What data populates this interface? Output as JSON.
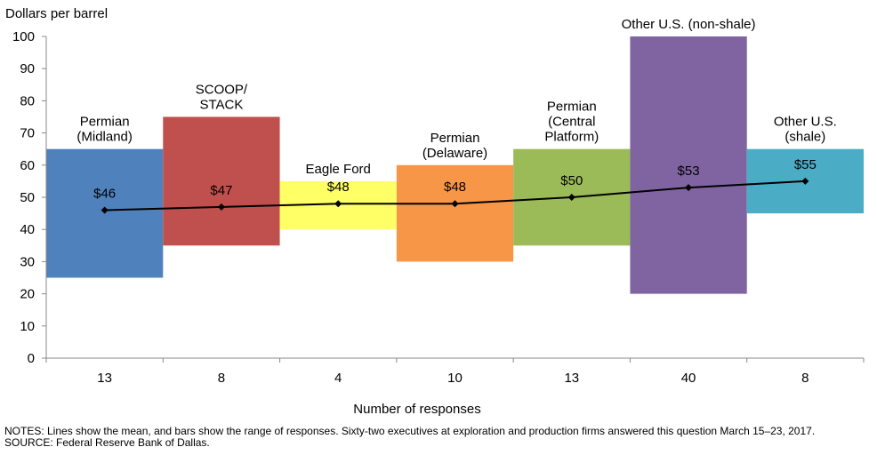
{
  "chart_data": {
    "type": "range-bar-with-mean-line",
    "ylabel": "Dollars per barrel",
    "xlabel": "Number of responses",
    "ylim": [
      0,
      100
    ],
    "yticks": [
      0,
      10,
      20,
      30,
      40,
      50,
      60,
      70,
      80,
      90,
      100
    ],
    "categories": [
      {
        "name_lines": [
          "Permian",
          "(Midland)"
        ],
        "responses": "13",
        "weight": 13,
        "low": 25,
        "high": 65,
        "mean": 46,
        "mean_label": "$46",
        "color": "#4F81BD"
      },
      {
        "name_lines": [
          "SCOOP/",
          "STACK"
        ],
        "responses": "8",
        "weight": 8,
        "low": 35,
        "high": 75,
        "mean": 47,
        "mean_label": "$47",
        "color": "#C0504D"
      },
      {
        "name_lines": [
          "Eagle Ford"
        ],
        "responses": "4",
        "weight": 4,
        "low": 40,
        "high": 55,
        "mean": 48,
        "mean_label": "$48",
        "color": "#FFFF66"
      },
      {
        "name_lines": [
          "Permian",
          "(Delaware)"
        ],
        "responses": "10",
        "weight": 10,
        "low": 30,
        "high": 60,
        "mean": 48,
        "mean_label": "$48",
        "color": "#F79646"
      },
      {
        "name_lines": [
          "Permian",
          "(Central",
          "Platform)"
        ],
        "responses": "13",
        "weight": 13,
        "low": 35,
        "high": 65,
        "mean": 50,
        "mean_label": "$50",
        "color": "#9BBB59"
      },
      {
        "name_lines": [
          "Other U.S. (non-shale)"
        ],
        "responses": "40",
        "weight": 40,
        "low": 20,
        "high": 100,
        "mean": 53,
        "mean_label": "$53",
        "color": "#8064A2"
      },
      {
        "name_lines": [
          "Other U.S.",
          "(shale)"
        ],
        "responses": "8",
        "weight": 8,
        "low": 45,
        "high": 65,
        "mean": 55,
        "mean_label": "$55",
        "color": "#4BACC6"
      }
    ]
  },
  "notes": {
    "line1": "NOTES: Lines show the mean, and bars show the range of responses. Sixty-two executives at exploration and production firms answered this question March 15–23, 2017.",
    "line2": "SOURCE: Federal Reserve Bank of Dallas."
  }
}
